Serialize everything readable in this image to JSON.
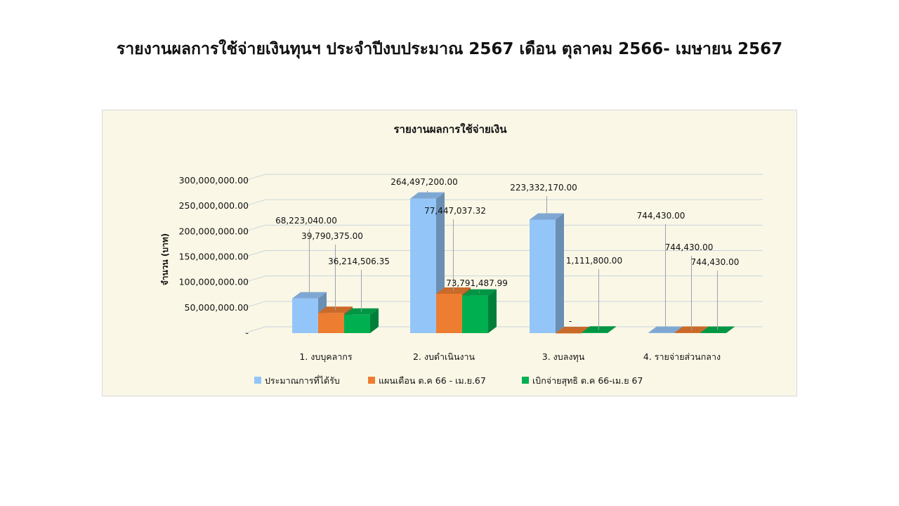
{
  "page": {
    "title": "รายงานผลการใช้จ่ายเงินทุนฯ ประจำปีงบประมาณ  2567 เดือน ตุลาคม 2566- เมษายน 2567"
  },
  "chart_data": {
    "type": "bar",
    "title": "รายงานผลการใช้จ่ายเงิน",
    "ylabel": "จำนวน (บาท)",
    "xlabel": "",
    "ylim": [
      0,
      300000000
    ],
    "yticks": [
      "-",
      "50,000,000.00",
      "100,000,000.00",
      "150,000,000.00",
      "200,000,000.00",
      "250,000,000.00",
      "300,000,000.00"
    ],
    "categories": [
      "1. งบบุคลากร",
      "2. งบดำเนินงาน",
      "3. งบลงทุน",
      "4. รายจ่ายส่วนกลาง"
    ],
    "series": [
      {
        "name": "ประมาณการที่ได้รับ",
        "color": "#94c5f8",
        "values": [
          68223040.0,
          264497200.0,
          223332170.0,
          744430.0
        ],
        "labels": [
          "68,223,040.00",
          "264,497,200.00",
          "223,332,170.00",
          "744,430.00"
        ]
      },
      {
        "name": "แผนเดือน ต.ค 66 - เม.ย.67",
        "color": "#ed7d31",
        "values": [
          39790375.0,
          77447037.32,
          0,
          744430.0
        ],
        "labels": [
          "39,790,375.00",
          "77,447,037.32",
          "-",
          "744,430.00"
        ]
      },
      {
        "name": "เบิกจ่ายสุทธิ ต.ค 66-เม.ย 67",
        "color": "#00b050",
        "values": [
          36214506.35,
          73791487.99,
          1111800.0,
          744430.0
        ],
        "labels": [
          "36,214,506.35",
          "73,791,487.99",
          "1,111,800.00",
          "744,430.00"
        ]
      }
    ],
    "grid": true,
    "legend": "bottom"
  }
}
